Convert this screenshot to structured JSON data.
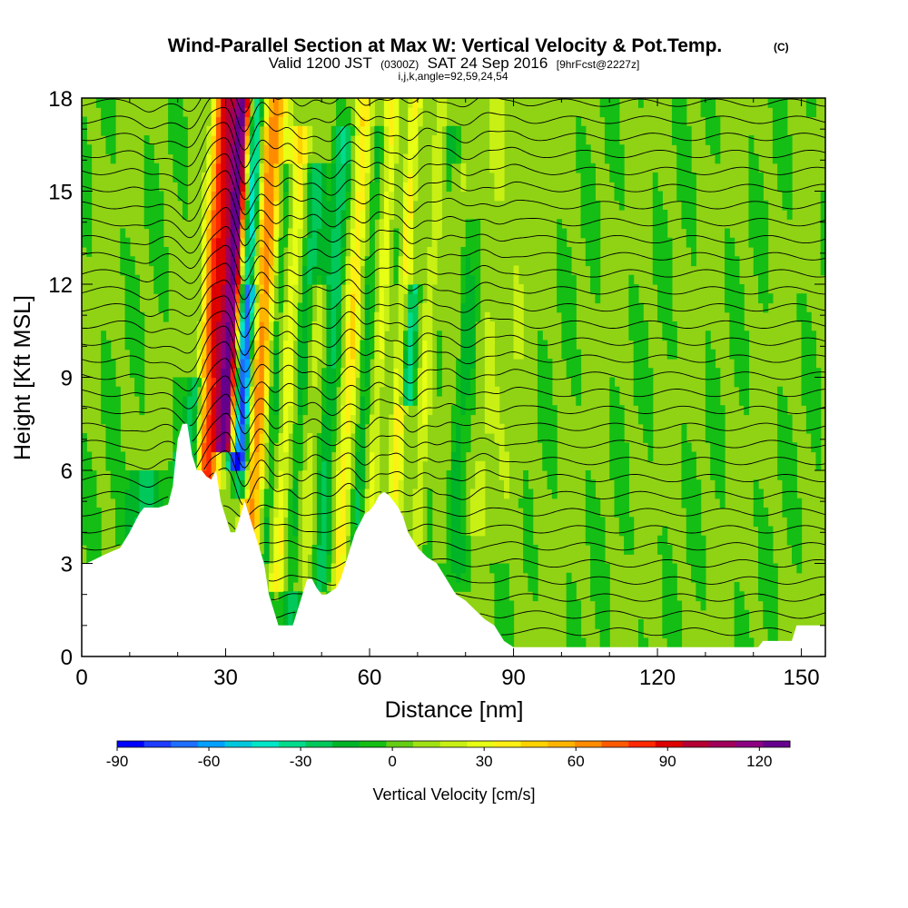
{
  "chart_data": {
    "type": "heatmap",
    "title": "Wind-Parallel Section at Max W: Vertical Velocity & Pot.Temp.",
    "title_mark": "(C)",
    "subtitle": {
      "valid": "Valid 1200 JST",
      "utc": "(0300Z)",
      "date": "SAT 24 Sep 2016",
      "forecast": "[9hrFcst@2227z]"
    },
    "subtitle2": "i,j,k,angle=92,59,24,54",
    "xlabel": "Distance [nm]",
    "ylabel": "Height [Kft MSL]",
    "xlim": [
      0,
      155
    ],
    "ylim": [
      0,
      18
    ],
    "xticks": [
      0,
      30,
      60,
      90,
      120,
      150
    ],
    "yticks": [
      0,
      3,
      6,
      9,
      12,
      15,
      18
    ],
    "colorbar": {
      "label": "Vertical Velocity [cm/s]",
      "ticks": [
        -90,
        -60,
        -30,
        0,
        30,
        60,
        90,
        120
      ],
      "min": -90,
      "max": 130,
      "colors": [
        "#0000ff",
        "#1e3cff",
        "#1e6eff",
        "#00a0ff",
        "#00c8dc",
        "#00e6c8",
        "#00dc8c",
        "#00c85a",
        "#00b428",
        "#14be14",
        "#64cd14",
        "#a0e114",
        "#c8f014",
        "#e6ff14",
        "#fff014",
        "#ffd200",
        "#ffb400",
        "#ff8c00",
        "#ff5a00",
        "#ff2800",
        "#dc0000",
        "#b40032",
        "#a0005a",
        "#8c0082",
        "#64008c"
      ]
    },
    "updrafts": [
      {
        "x": 31,
        "peak": 125,
        "width": 1.6,
        "top": 18,
        "bottom": 6.5
      },
      {
        "x": 28,
        "peak": 55,
        "width": 1.8,
        "top": 18,
        "bottom": 5.5
      },
      {
        "x": 26,
        "peak": 45,
        "width": 1.5,
        "top": 18,
        "bottom": 5.0
      },
      {
        "x": 38,
        "peak": 55,
        "width": 1.5,
        "top": 18,
        "bottom": 3.0
      },
      {
        "x": 36,
        "peak": 35,
        "width": 1.2,
        "top": 18,
        "bottom": 3.0
      },
      {
        "x": 43,
        "peak": 38,
        "width": 1.5,
        "top": 17,
        "bottom": 2.0
      },
      {
        "x": 48,
        "peak": 28,
        "width": 1.5,
        "top": 12,
        "bottom": 2.0
      },
      {
        "x": 56,
        "peak": 42,
        "width": 1.5,
        "top": 18,
        "bottom": 2.0
      },
      {
        "x": 62,
        "peak": 40,
        "width": 1.5,
        "top": 18,
        "bottom": 3.0
      },
      {
        "x": 66,
        "peak": 42,
        "width": 1.3,
        "top": 18,
        "bottom": 2.5
      },
      {
        "x": 72,
        "peak": 28,
        "width": 1.3,
        "top": 18,
        "bottom": 3.0
      },
      {
        "x": 76,
        "peak": 20,
        "width": 1.5,
        "top": 16,
        "bottom": 3.0
      },
      {
        "x": 84,
        "peak": 18,
        "width": 2.0,
        "top": 18,
        "bottom": 4.0
      },
      {
        "x": 90,
        "peak": 12,
        "width": 2.0,
        "top": 18,
        "bottom": 3.0
      }
    ],
    "downdrafts": [
      {
        "x": 33,
        "peak": -85,
        "width": 1.3,
        "top": 18,
        "bottom": 6.0
      },
      {
        "x": 34.5,
        "peak": -45,
        "width": 1.2,
        "top": 12,
        "bottom": 5.0
      },
      {
        "x": 24,
        "peak": -40,
        "width": 1.4,
        "top": 9,
        "bottom": 5.0
      },
      {
        "x": 22,
        "peak": -45,
        "width": 1.2,
        "top": 6.5,
        "bottom": 4.8
      },
      {
        "x": 40,
        "peak": -35,
        "width": 1.3,
        "top": 16,
        "bottom": 3.0
      },
      {
        "x": 46,
        "peak": -28,
        "width": 1.5,
        "top": 16,
        "bottom": 1.0
      },
      {
        "x": 52,
        "peak": -25,
        "width": 1.5,
        "top": 17,
        "bottom": 2.0
      },
      {
        "x": 59,
        "peak": -25,
        "width": 1.5,
        "top": 17,
        "bottom": 3.0
      },
      {
        "x": 64,
        "peak": -28,
        "width": 1.3,
        "top": 18,
        "bottom": 4.0
      },
      {
        "x": 68,
        "peak": -45,
        "width": 1.0,
        "top": 12,
        "bottom": 8.0
      },
      {
        "x": 74,
        "peak": -18,
        "width": 1.5,
        "top": 17,
        "bottom": 2.0
      },
      {
        "x": 80,
        "peak": -15,
        "width": 2.0,
        "top": 14,
        "bottom": 2.0
      },
      {
        "x": 14,
        "peak": -28,
        "width": 2.5,
        "top": 6.0,
        "bottom": 3.5
      }
    ],
    "terrain": [
      [
        0,
        3.0
      ],
      [
        1,
        3.0
      ],
      [
        5,
        3.3
      ],
      [
        8,
        3.5
      ],
      [
        10,
        4.0
      ],
      [
        12,
        4.6
      ],
      [
        13,
        4.8
      ],
      [
        16,
        4.8
      ],
      [
        18,
        4.9
      ],
      [
        19,
        5.5
      ],
      [
        20,
        7.0
      ],
      [
        21,
        7.5
      ],
      [
        22,
        7.5
      ],
      [
        23,
        6.5
      ],
      [
        24,
        6.0
      ],
      [
        25,
        6.0
      ],
      [
        26,
        5.8
      ],
      [
        27,
        5.7
      ],
      [
        28,
        6.0
      ],
      [
        29,
        5.0
      ],
      [
        30,
        4.5
      ],
      [
        31,
        4.0
      ],
      [
        32,
        4.0
      ],
      [
        33,
        4.5
      ],
      [
        34,
        5.0
      ],
      [
        35,
        4.5
      ],
      [
        36,
        4.0
      ],
      [
        37,
        3.5
      ],
      [
        38,
        3.0
      ],
      [
        39,
        2.0
      ],
      [
        40,
        1.5
      ],
      [
        41,
        1.0
      ],
      [
        42,
        1.0
      ],
      [
        44,
        1.0
      ],
      [
        45,
        1.5
      ],
      [
        46,
        2.0
      ],
      [
        47,
        2.5
      ],
      [
        48,
        2.5
      ],
      [
        49,
        2.2
      ],
      [
        50,
        2.0
      ],
      [
        51,
        2.0
      ],
      [
        53,
        2.2
      ],
      [
        54,
        2.5
      ],
      [
        55,
        3.0
      ],
      [
        56,
        3.5
      ],
      [
        57,
        4.0
      ],
      [
        58,
        4.3
      ],
      [
        59,
        4.6
      ],
      [
        60,
        4.7
      ],
      [
        61,
        4.9
      ],
      [
        62,
        5.2
      ],
      [
        63,
        5.3
      ],
      [
        64,
        5.2
      ],
      [
        65,
        5.0
      ],
      [
        66,
        4.8
      ],
      [
        67,
        4.5
      ],
      [
        68,
        4.0
      ],
      [
        70,
        3.5
      ],
      [
        72,
        3.2
      ],
      [
        74,
        3.0
      ],
      [
        76,
        2.5
      ],
      [
        78,
        2.0
      ],
      [
        80,
        1.8
      ],
      [
        82,
        1.5
      ],
      [
        84,
        1.2
      ],
      [
        86,
        1.0
      ],
      [
        88,
        0.5
      ],
      [
        90,
        0.3
      ],
      [
        100,
        0.3
      ],
      [
        110,
        0.3
      ],
      [
        120,
        0.3
      ],
      [
        128,
        0.3
      ],
      [
        130,
        0.3
      ],
      [
        141,
        0.3
      ],
      [
        142,
        0.5
      ],
      [
        144,
        0.5
      ],
      [
        148,
        0.5
      ],
      [
        149,
        1.0
      ],
      [
        155,
        1.0
      ]
    ]
  }
}
